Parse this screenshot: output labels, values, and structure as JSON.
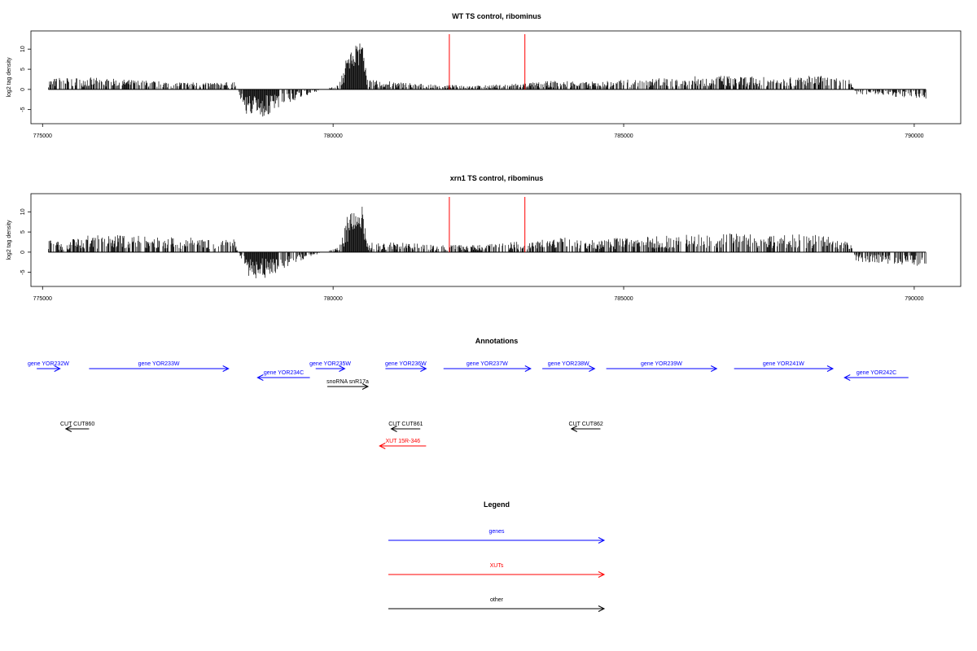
{
  "colors": {
    "gene": "#0000ff",
    "xut": "#ff0000",
    "other": "#000000",
    "marker": "#ff0000",
    "bars": "#000000"
  },
  "chart_data": [
    {
      "type": "bar",
      "title": "WT TS control, ribominus",
      "ylabel": "log2 tag density",
      "xlim": [
        774800,
        790800
      ],
      "ylim": [
        -8.5,
        14.5
      ],
      "x_ticks": [
        "775000",
        "780000",
        "785000",
        "790000"
      ],
      "y_ticks": [
        "-5",
        "0",
        "5",
        "10"
      ],
      "markers": [
        782000,
        783300
      ],
      "density_profile": [
        {
          "x": 775100,
          "y": 2
        },
        {
          "x": 775300,
          "y": 2.5
        },
        {
          "x": 775800,
          "y": 2.5
        },
        {
          "x": 776500,
          "y": 2
        },
        {
          "x": 777500,
          "y": 1.5
        },
        {
          "x": 778300,
          "y": 1.5
        },
        {
          "x": 778500,
          "y": -5
        },
        {
          "x": 778800,
          "y": -6
        },
        {
          "x": 779200,
          "y": -3
        },
        {
          "x": 779600,
          "y": -1
        },
        {
          "x": 780100,
          "y": 1
        },
        {
          "x": 780300,
          "y": 10
        },
        {
          "x": 780500,
          "y": 12
        },
        {
          "x": 780600,
          "y": 2
        },
        {
          "x": 781200,
          "y": 1.5
        },
        {
          "x": 781700,
          "y": 1
        },
        {
          "x": 782500,
          "y": 0.8
        },
        {
          "x": 783500,
          "y": 1.5
        },
        {
          "x": 784000,
          "y": 2
        },
        {
          "x": 784300,
          "y": 1.5
        },
        {
          "x": 785000,
          "y": 2
        },
        {
          "x": 785800,
          "y": 2.5
        },
        {
          "x": 786600,
          "y": 3
        },
        {
          "x": 787500,
          "y": 2.5
        },
        {
          "x": 788300,
          "y": 3
        },
        {
          "x": 788900,
          "y": 2
        },
        {
          "x": 789000,
          "y": -1
        },
        {
          "x": 790200,
          "y": -2
        }
      ]
    },
    {
      "type": "bar",
      "title": "xrn1 TS control, ribominus",
      "ylabel": "log2 tag density",
      "xlim": [
        774800,
        790800
      ],
      "ylim": [
        -8.5,
        14.5
      ],
      "x_ticks": [
        "775000",
        "780000",
        "785000",
        "790000"
      ],
      "y_ticks": [
        "-5",
        "0",
        "5",
        "10"
      ],
      "markers": [
        782000,
        783300
      ],
      "density_profile": [
        {
          "x": 775100,
          "y": 3
        },
        {
          "x": 775300,
          "y": 2
        },
        {
          "x": 775800,
          "y": 3.5
        },
        {
          "x": 776500,
          "y": 3.5
        },
        {
          "x": 777500,
          "y": 3
        },
        {
          "x": 778300,
          "y": 3
        },
        {
          "x": 778500,
          "y": -5
        },
        {
          "x": 778800,
          "y": -6
        },
        {
          "x": 779200,
          "y": -3
        },
        {
          "x": 779600,
          "y": -1
        },
        {
          "x": 780100,
          "y": 1
        },
        {
          "x": 780300,
          "y": 10
        },
        {
          "x": 780500,
          "y": 12
        },
        {
          "x": 780600,
          "y": 2
        },
        {
          "x": 781200,
          "y": 2
        },
        {
          "x": 781700,
          "y": 1.5
        },
        {
          "x": 782500,
          "y": 1.5
        },
        {
          "x": 783500,
          "y": 2.5
        },
        {
          "x": 784000,
          "y": 3
        },
        {
          "x": 784300,
          "y": 2.5
        },
        {
          "x": 785000,
          "y": 3
        },
        {
          "x": 785800,
          "y": 3.5
        },
        {
          "x": 786600,
          "y": 4
        },
        {
          "x": 787500,
          "y": 3.5
        },
        {
          "x": 788300,
          "y": 4
        },
        {
          "x": 788900,
          "y": 2
        },
        {
          "x": 789000,
          "y": -2
        },
        {
          "x": 790200,
          "y": -3
        }
      ]
    }
  ],
  "annotations": {
    "title": "Annotations",
    "features": [
      {
        "label": "gene YOR232W",
        "kind": "gene",
        "start": 774900,
        "end": 775300,
        "strand": "+",
        "row": 0
      },
      {
        "label": "gene YOR233W",
        "kind": "gene",
        "start": 775800,
        "end": 778200,
        "strand": "+",
        "row": 0
      },
      {
        "label": "gene YOR234C",
        "kind": "gene",
        "start": 778700,
        "end": 779600,
        "strand": "-",
        "row": 1
      },
      {
        "label": "gene YOR235W",
        "kind": "gene",
        "start": 779700,
        "end": 780200,
        "strand": "+",
        "row": 0
      },
      {
        "label": "gene YOR236W",
        "kind": "gene",
        "start": 780900,
        "end": 781600,
        "strand": "+",
        "row": 0
      },
      {
        "label": "gene YOR237W",
        "kind": "gene",
        "start": 781900,
        "end": 783400,
        "strand": "+",
        "row": 0
      },
      {
        "label": "gene YOR238W",
        "kind": "gene",
        "start": 783600,
        "end": 784500,
        "strand": "+",
        "row": 0
      },
      {
        "label": "gene YOR239W",
        "kind": "gene",
        "start": 784700,
        "end": 786600,
        "strand": "+",
        "row": 0
      },
      {
        "label": "gene YOR241W",
        "kind": "gene",
        "start": 786900,
        "end": 788600,
        "strand": "+",
        "row": 0
      },
      {
        "label": "gene YOR242C",
        "kind": "gene",
        "start": 788800,
        "end": 789900,
        "strand": "-",
        "row": 1
      },
      {
        "label": "snoRNA snR17a",
        "kind": "other",
        "start": 779900,
        "end": 780600,
        "strand": "+",
        "row": 2
      },
      {
        "label": "CUT CUT860",
        "kind": "other",
        "start": 775400,
        "end": 775800,
        "strand": "-",
        "row": 3
      },
      {
        "label": "CUT CUT861",
        "kind": "other",
        "start": 781000,
        "end": 781500,
        "strand": "-",
        "row": 3
      },
      {
        "label": "CUT CUT862",
        "kind": "other",
        "start": 784100,
        "end": 784600,
        "strand": "-",
        "row": 3
      },
      {
        "label": "XUT 15R-346",
        "kind": "xut",
        "start": 780800,
        "end": 781600,
        "strand": "-",
        "row": 4
      }
    ]
  },
  "legend": {
    "title": "Legend",
    "entries": [
      {
        "label": "genes",
        "kind": "gene"
      },
      {
        "label": "XUTs",
        "kind": "xut"
      },
      {
        "label": "other",
        "kind": "other"
      }
    ]
  }
}
